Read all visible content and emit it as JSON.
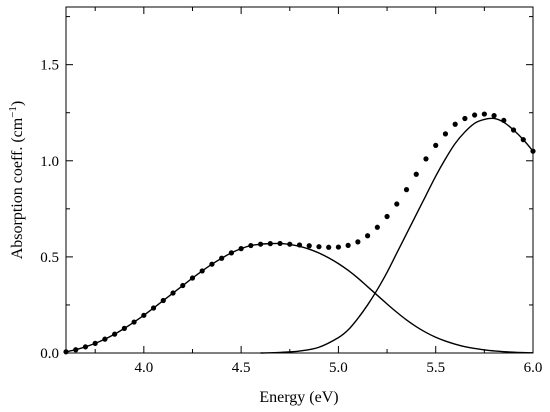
{
  "chart_data": {
    "type": "scatter",
    "title": "",
    "xlabel": "Energy (eV)",
    "ylabel_main": "Absorption coeff. (cm",
    "ylabel_sup": "−1",
    "ylabel_end": ")",
    "xlim": [
      3.6,
      6.0
    ],
    "ylim": [
      0.0,
      1.8
    ],
    "x_ticks": [
      4.0,
      4.5,
      5.0,
      5.5,
      6.0
    ],
    "x_tick_labels": [
      "4.0",
      "4.5",
      "5.0",
      "5.5",
      "6.0"
    ],
    "y_ticks": [
      0.0,
      0.5,
      1.0,
      1.5
    ],
    "y_tick_labels": [
      "0.0",
      "0.5",
      "1.0",
      "1.5"
    ],
    "grid": false,
    "legend": "none",
    "series": [
      {
        "style": "dots",
        "x": [
          3.6,
          3.65,
          3.7,
          3.75,
          3.8,
          3.85,
          3.9,
          3.95,
          4.0,
          4.05,
          4.1,
          4.15,
          4.2,
          4.25,
          4.3,
          4.35,
          4.4,
          4.45,
          4.5,
          4.55,
          4.6,
          4.65,
          4.7,
          4.75,
          4.8,
          4.85,
          4.9,
          4.95,
          5.0,
          5.05,
          5.1,
          5.15,
          5.2,
          5.25,
          5.3,
          5.35,
          5.4,
          5.45,
          5.5,
          5.55,
          5.6,
          5.65,
          5.7,
          5.75,
          5.8,
          5.85,
          5.9,
          5.95,
          6.0
        ],
        "y": [
          0.006,
          0.017,
          0.032,
          0.05,
          0.072,
          0.098,
          0.128,
          0.161,
          0.196,
          0.234,
          0.273,
          0.312,
          0.351,
          0.39,
          0.427,
          0.462,
          0.493,
          0.521,
          0.543,
          0.559,
          0.566,
          0.569,
          0.57,
          0.566,
          0.562,
          0.558,
          0.553,
          0.55,
          0.551,
          0.56,
          0.578,
          0.61,
          0.654,
          0.71,
          0.775,
          0.85,
          0.93,
          1.01,
          1.08,
          1.14,
          1.19,
          1.22,
          1.238,
          1.243,
          1.235,
          1.21,
          1.16,
          1.11,
          1.05
        ]
      },
      {
        "style": "line",
        "x": [
          3.6,
          3.65,
          3.7,
          3.75,
          3.8,
          3.85,
          3.9,
          3.95,
          4.0,
          4.05,
          4.1,
          4.15,
          4.2,
          4.25,
          4.3,
          4.35,
          4.4,
          4.45,
          4.5,
          4.55,
          4.6,
          4.65,
          4.7,
          4.75,
          4.8,
          4.85,
          4.9,
          4.95,
          5.0,
          5.05,
          5.1,
          5.15,
          5.2,
          5.25,
          5.3,
          5.35,
          5.4,
          5.45,
          5.5,
          5.55,
          5.6,
          5.65,
          5.7,
          5.75,
          5.8,
          5.85,
          5.9,
          5.95,
          6.0
        ],
        "y": [
          0.006,
          0.017,
          0.032,
          0.05,
          0.072,
          0.098,
          0.128,
          0.161,
          0.196,
          0.234,
          0.273,
          0.312,
          0.351,
          0.39,
          0.427,
          0.462,
          0.493,
          0.521,
          0.543,
          0.559,
          0.566,
          0.569,
          0.57,
          0.565,
          0.555,
          0.54,
          0.52,
          0.495,
          0.465,
          0.43,
          0.39,
          0.345,
          0.3,
          0.255,
          0.212,
          0.172,
          0.137,
          0.107,
          0.082,
          0.062,
          0.046,
          0.033,
          0.024,
          0.016,
          0.011,
          0.007,
          0.004,
          0.002,
          0.001
        ]
      },
      {
        "style": "line",
        "x": [
          4.6,
          4.7,
          4.8,
          4.9,
          5.0,
          5.05,
          5.1,
          5.15,
          5.2,
          5.25,
          5.3,
          5.35,
          5.4,
          5.45,
          5.5,
          5.55,
          5.6,
          5.65,
          5.7,
          5.75,
          5.8,
          5.85,
          5.9,
          5.95,
          6.0
        ],
        "y": [
          0.0,
          0.003,
          0.01,
          0.03,
          0.08,
          0.12,
          0.18,
          0.25,
          0.33,
          0.42,
          0.52,
          0.62,
          0.72,
          0.82,
          0.92,
          1.01,
          1.09,
          1.15,
          1.195,
          1.215,
          1.22,
          1.2,
          1.16,
          1.11,
          1.05
        ]
      }
    ]
  }
}
